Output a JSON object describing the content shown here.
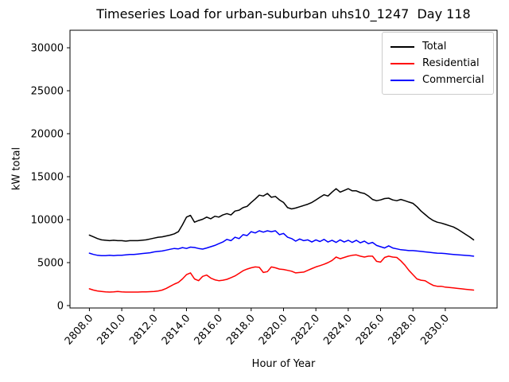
{
  "chart_data": {
    "type": "line",
    "title": "Timeseries Load for urban-suburban uhs10_1247  Day 118",
    "xlabel": "Hour of Year",
    "ylabel": "kW total",
    "grid": false,
    "legend_position": "upper right",
    "xlim": [
      2806.8,
      2833.2
    ],
    "ylim": [
      -280,
      32040
    ],
    "x_ticks": [
      2808,
      2810,
      2812,
      2814,
      2816,
      2818,
      2820,
      2822,
      2824,
      2826,
      2828,
      2830
    ],
    "x_tick_labels": [
      "2808.0",
      "2810.0",
      "2812.0",
      "2814.0",
      "2816.0",
      "2818.0",
      "2820.0",
      "2822.0",
      "2824.0",
      "2826.0",
      "2828.0",
      "2830.0"
    ],
    "y_ticks": [
      0,
      5000,
      10000,
      15000,
      20000,
      25000,
      30000
    ],
    "y_tick_labels": [
      "0",
      "5000",
      "10000",
      "15000",
      "20000",
      "25000",
      "30000"
    ],
    "x": [
      2808,
      2808.25,
      2808.5,
      2808.75,
      2809,
      2809.25,
      2809.5,
      2809.75,
      2810,
      2810.25,
      2810.5,
      2810.75,
      2811,
      2811.25,
      2811.5,
      2811.75,
      2812,
      2812.25,
      2812.5,
      2812.75,
      2813,
      2813.25,
      2813.5,
      2813.75,
      2814,
      2814.25,
      2814.5,
      2814.75,
      2815,
      2815.25,
      2815.5,
      2815.75,
      2816,
      2816.25,
      2816.5,
      2816.75,
      2817,
      2817.25,
      2817.5,
      2817.75,
      2818,
      2818.25,
      2818.5,
      2818.75,
      2819,
      2819.25,
      2819.5,
      2819.75,
      2820,
      2820.25,
      2820.5,
      2820.75,
      2821,
      2821.25,
      2821.5,
      2821.75,
      2822,
      2822.25,
      2822.5,
      2822.75,
      2823,
      2823.25,
      2823.5,
      2823.75,
      2824,
      2824.25,
      2824.5,
      2824.75,
      2825,
      2825.25,
      2825.5,
      2825.75,
      2826,
      2826.25,
      2826.5,
      2826.75,
      2827,
      2827.25,
      2827.5,
      2827.75,
      2828,
      2828.25,
      2828.5,
      2828.75,
      2829,
      2829.25,
      2829.5,
      2829.75,
      2830,
      2830.25,
      2830.5,
      2830.75,
      2831,
      2831.25,
      2831.5,
      2831.75
    ],
    "series": [
      {
        "name": "Total",
        "color": "#000000",
        "values": [
          8200,
          8000,
          7800,
          7650,
          7600,
          7550,
          7600,
          7550,
          7550,
          7500,
          7550,
          7550,
          7550,
          7600,
          7650,
          7750,
          7850,
          7950,
          8000,
          8100,
          8200,
          8350,
          8600,
          9400,
          10300,
          10500,
          9700,
          9900,
          10050,
          10300,
          10100,
          10400,
          10300,
          10550,
          10700,
          10550,
          11000,
          11100,
          11400,
          11550,
          12000,
          12400,
          12850,
          12750,
          13050,
          12600,
          12700,
          12300,
          12000,
          11400,
          11250,
          11350,
          11500,
          11650,
          11800,
          12000,
          12300,
          12600,
          12900,
          12750,
          13200,
          13600,
          13200,
          13400,
          13600,
          13350,
          13350,
          13150,
          13050,
          12750,
          12350,
          12200,
          12300,
          12450,
          12500,
          12300,
          12200,
          12350,
          12200,
          12050,
          11900,
          11500,
          11000,
          10600,
          10200,
          9900,
          9700,
          9600,
          9450,
          9300,
          9150,
          8900,
          8600,
          8300,
          8000,
          7650
        ]
      },
      {
        "name": "Residential",
        "color": "#ff0000",
        "values": [
          1950,
          1800,
          1700,
          1650,
          1600,
          1570,
          1600,
          1650,
          1600,
          1570,
          1570,
          1570,
          1570,
          1600,
          1600,
          1620,
          1650,
          1700,
          1800,
          2000,
          2250,
          2500,
          2700,
          3100,
          3600,
          3800,
          3100,
          2900,
          3400,
          3550,
          3200,
          3000,
          2900,
          2950,
          3050,
          3250,
          3450,
          3750,
          4050,
          4250,
          4400,
          4500,
          4450,
          3850,
          3950,
          4500,
          4400,
          4250,
          4200,
          4100,
          4000,
          3800,
          3850,
          3900,
          4100,
          4300,
          4500,
          4650,
          4800,
          5000,
          5250,
          5650,
          5450,
          5600,
          5750,
          5850,
          5900,
          5750,
          5650,
          5750,
          5750,
          5150,
          5050,
          5600,
          5750,
          5650,
          5600,
          5200,
          4700,
          4100,
          3600,
          3100,
          2950,
          2900,
          2600,
          2350,
          2250,
          2250,
          2150,
          2100,
          2050,
          2000,
          1950,
          1900,
          1850,
          1800
        ]
      },
      {
        "name": "Commercial",
        "color": "#0000ff",
        "values": [
          6100,
          5950,
          5850,
          5800,
          5800,
          5850,
          5800,
          5850,
          5850,
          5900,
          5950,
          5950,
          6000,
          6050,
          6100,
          6150,
          6250,
          6300,
          6350,
          6450,
          6550,
          6650,
          6600,
          6750,
          6650,
          6800,
          6760,
          6650,
          6570,
          6700,
          6850,
          7000,
          7200,
          7400,
          7700,
          7550,
          7950,
          7800,
          8250,
          8150,
          8600,
          8450,
          8700,
          8550,
          8700,
          8600,
          8700,
          8250,
          8400,
          7950,
          7800,
          7500,
          7750,
          7550,
          7650,
          7400,
          7650,
          7450,
          7700,
          7400,
          7600,
          7350,
          7650,
          7400,
          7600,
          7350,
          7600,
          7300,
          7500,
          7200,
          7350,
          7000,
          6850,
          6700,
          6950,
          6700,
          6600,
          6500,
          6450,
          6400,
          6400,
          6350,
          6300,
          6250,
          6200,
          6150,
          6100,
          6080,
          6050,
          6000,
          5950,
          5920,
          5880,
          5840,
          5800,
          5750
        ]
      }
    ]
  }
}
